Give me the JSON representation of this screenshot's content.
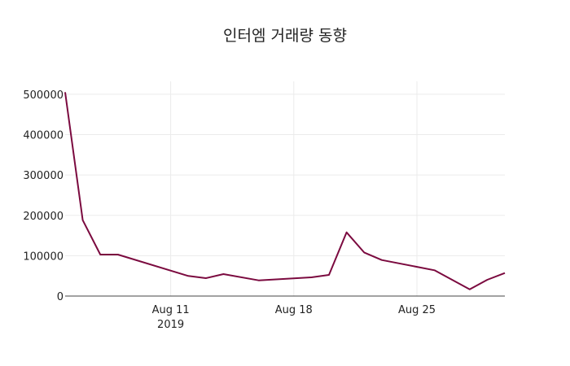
{
  "chart_data": {
    "type": "line",
    "title": "인터엠 거래량 동향",
    "xlabel": "",
    "ylabel": "",
    "x": [
      "2019-08-05",
      "2019-08-06",
      "2019-08-07",
      "2019-08-08",
      "2019-08-12",
      "2019-08-13",
      "2019-08-14",
      "2019-08-16",
      "2019-08-19",
      "2019-08-20",
      "2019-08-21",
      "2019-08-22",
      "2019-08-23",
      "2019-08-26",
      "2019-08-28",
      "2019-08-29",
      "2019-08-30"
    ],
    "series": [
      {
        "values": [
          505000,
          188000,
          102700,
          102700,
          49700,
          44300,
          54400,
          38900,
          46300,
          52300,
          157700,
          108000,
          89300,
          63800,
          16800,
          40300,
          57000
        ],
        "color": "#7b0a3f"
      }
    ],
    "xlim": [
      "2019-08-05",
      "2019-08-30"
    ],
    "ylim": [
      0,
      532000
    ],
    "x_ticks": [
      {
        "date": "2019-08-11",
        "label": "Aug 11",
        "sublabel": "2019"
      },
      {
        "date": "2019-08-18",
        "label": "Aug 18",
        "sublabel": ""
      },
      {
        "date": "2019-08-25",
        "label": "Aug 25",
        "sublabel": ""
      }
    ],
    "y_ticks": [
      0,
      100000,
      200000,
      300000,
      400000,
      500000
    ],
    "grid": true,
    "legend": "none"
  }
}
